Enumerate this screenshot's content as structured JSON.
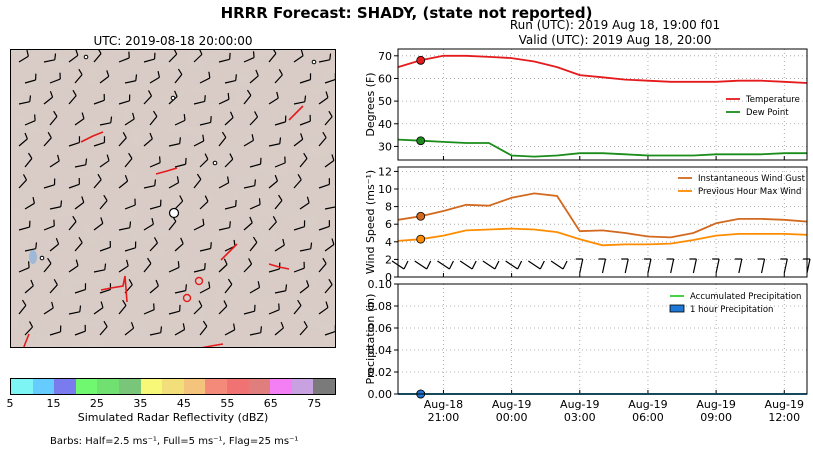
{
  "header": {
    "title": "HRRR Forecast: SHADY, (state not reported)",
    "run": "Run (UTC): 2019 Aug 18, 19:00 f01",
    "valid": "Valid (UTC): 2019 Aug 18, 20:00"
  },
  "map": {
    "title": "UTC: 2019-08-18 20:00:00",
    "colorbar_label": "Simulated Radar Reflectivity (dBZ)",
    "colorbar_ticks": [
      "5",
      "15",
      "25",
      "35",
      "45",
      "55",
      "65",
      "75"
    ],
    "colorbar_colors": [
      "#7ef5f5",
      "#66ccff",
      "#7b7bf0",
      "#70f870",
      "#70e070",
      "#79c579",
      "#f8f878",
      "#f2df7a",
      "#f4c47c",
      "#f48a7a",
      "#f07272",
      "#e07e7e",
      "#f47ef4",
      "#c8a2e0",
      "#7a7a7a"
    ],
    "barbs_note": "Barbs: Half=2.5 ms⁻¹, Full=5 ms⁻¹, Flag=25 ms⁻¹"
  },
  "chart_data": [
    {
      "type": "line",
      "x": [
        "19:00",
        "20:00",
        "21:00",
        "22:00",
        "23:00",
        "00:00",
        "01:00",
        "02:00",
        "03:00",
        "04:00",
        "05:00",
        "06:00",
        "07:00",
        "08:00",
        "09:00",
        "10:00",
        "11:00",
        "12:00",
        "13:00"
      ],
      "ylabel": "Degrees (F)",
      "ylim": [
        24,
        73
      ],
      "yticks": [
        "30",
        "40",
        "50",
        "60",
        "70"
      ],
      "series": [
        {
          "name": "Temperature",
          "color": "#e41a1c",
          "values": [
            65,
            68,
            70,
            70,
            69.5,
            69,
            67.5,
            65,
            61.5,
            60.5,
            59.5,
            59,
            58.5,
            58.5,
            58.5,
            59,
            59,
            58.5,
            58
          ]
        },
        {
          "name": "Dew Point",
          "color": "#1a8c1a",
          "values": [
            33,
            32.5,
            32,
            31.5,
            31.5,
            26,
            25.5,
            26,
            27,
            27,
            26.5,
            26,
            26,
            26,
            26.5,
            26.5,
            26.5,
            27,
            27
          ]
        }
      ],
      "legend_position": "right"
    },
    {
      "type": "line",
      "x": [
        "19:00",
        "20:00",
        "21:00",
        "22:00",
        "23:00",
        "00:00",
        "01:00",
        "02:00",
        "03:00",
        "04:00",
        "05:00",
        "06:00",
        "07:00",
        "08:00",
        "09:00",
        "10:00",
        "11:00",
        "12:00",
        "13:00"
      ],
      "ylabel": "Wind Speed (ms⁻¹)",
      "ylim": [
        0,
        12.5
      ],
      "yticks": [
        "0",
        "2",
        "4",
        "6",
        "8",
        "10",
        "12"
      ],
      "series": [
        {
          "name": "Instantaneous Wind Gust",
          "color": "#d2691e",
          "values": [
            6.5,
            6.9,
            7.5,
            8.2,
            8.1,
            9.0,
            9.5,
            9.2,
            5.2,
            5.3,
            5.0,
            4.6,
            4.5,
            5.0,
            6.1,
            6.6,
            6.6,
            6.5,
            6.3
          ]
        },
        {
          "name": "Previous Hour Max Wind",
          "color": "#ff8c00",
          "values": [
            4.1,
            4.3,
            4.7,
            5.3,
            5.4,
            5.5,
            5.4,
            5.1,
            4.3,
            3.6,
            3.7,
            3.7,
            3.8,
            4.2,
            4.7,
            4.9,
            4.9,
            4.9,
            4.8
          ]
        }
      ],
      "legend_position": "top-right"
    },
    {
      "type": "line",
      "x": [
        "19:00",
        "20:00",
        "21:00",
        "22:00",
        "23:00",
        "00:00",
        "01:00",
        "02:00",
        "03:00",
        "04:00",
        "05:00",
        "06:00",
        "07:00",
        "08:00",
        "09:00",
        "10:00",
        "11:00",
        "12:00",
        "13:00"
      ],
      "ylabel": "Precipitation (in)",
      "ylim": [
        0,
        0.1
      ],
      "yticks": [
        "0.00",
        "0.02",
        "0.04",
        "0.06",
        "0.08",
        "0.10"
      ],
      "xticks": [
        {
          "day": "Aug-18",
          "time": "21:00"
        },
        {
          "day": "Aug-19",
          "time": "00:00"
        },
        {
          "day": "Aug-19",
          "time": "03:00"
        },
        {
          "day": "Aug-19",
          "time": "06:00"
        },
        {
          "day": "Aug-19",
          "time": "09:00"
        },
        {
          "day": "Aug-19",
          "time": "12:00"
        }
      ],
      "series": [
        {
          "name": "Accumulated Precipitation",
          "color": "#32cd32",
          "values": [
            0,
            0,
            0,
            0,
            0,
            0,
            0,
            0,
            0,
            0,
            0,
            0,
            0,
            0,
            0,
            0,
            0,
            0,
            0
          ]
        },
        {
          "name": "1 hour Precipitation",
          "color": "#1f78d6",
          "values": [
            0,
            0,
            0,
            0,
            0,
            0,
            0,
            0,
            0,
            0,
            0,
            0,
            0,
            0,
            0,
            0,
            0,
            0,
            0
          ]
        }
      ],
      "legend_position": "top-right"
    }
  ]
}
